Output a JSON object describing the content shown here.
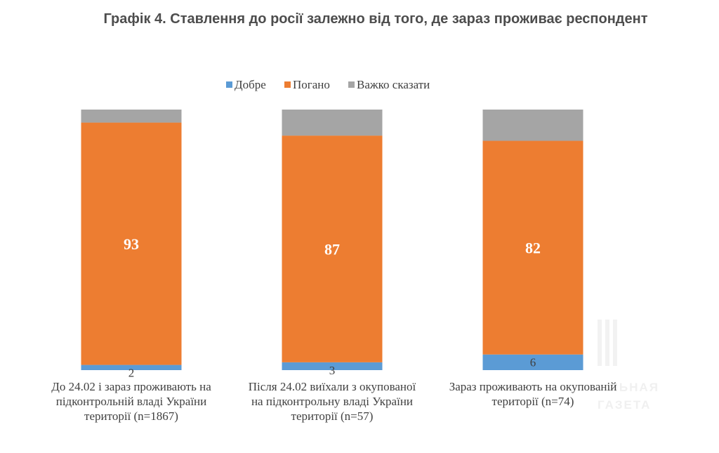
{
  "chart_data": {
    "type": "bar",
    "stacked": true,
    "title": "Графік 4. Ставлення до росії залежно від того, де зараз проживає респондент",
    "categories": [
      [
        "До 24.02 і зараз проживають на",
        "підконтрольній владі України",
        "території (n=1867)"
      ],
      [
        "Після 24.02 виїхали з окупованої",
        "на підконтрольну владі України",
        "території (n=57)"
      ],
      [
        "Зараз проживають на окупованій",
        "території (n=74)"
      ]
    ],
    "series": [
      {
        "name": "Добре",
        "color": "#5b9bd5",
        "values": [
          2,
          3,
          6
        ]
      },
      {
        "name": "Погано",
        "color": "#ed7d31",
        "values": [
          93,
          87,
          82
        ]
      },
      {
        "name": "Важко сказати",
        "color": "#a5a5a5",
        "values": [
          5,
          10,
          12
        ]
      }
    ],
    "ylim": [
      0,
      100
    ],
    "legend_position": "top",
    "grid": false,
    "watermark_text": [
      "ЛЬНАЯ",
      "ГАЗЕТА"
    ]
  }
}
